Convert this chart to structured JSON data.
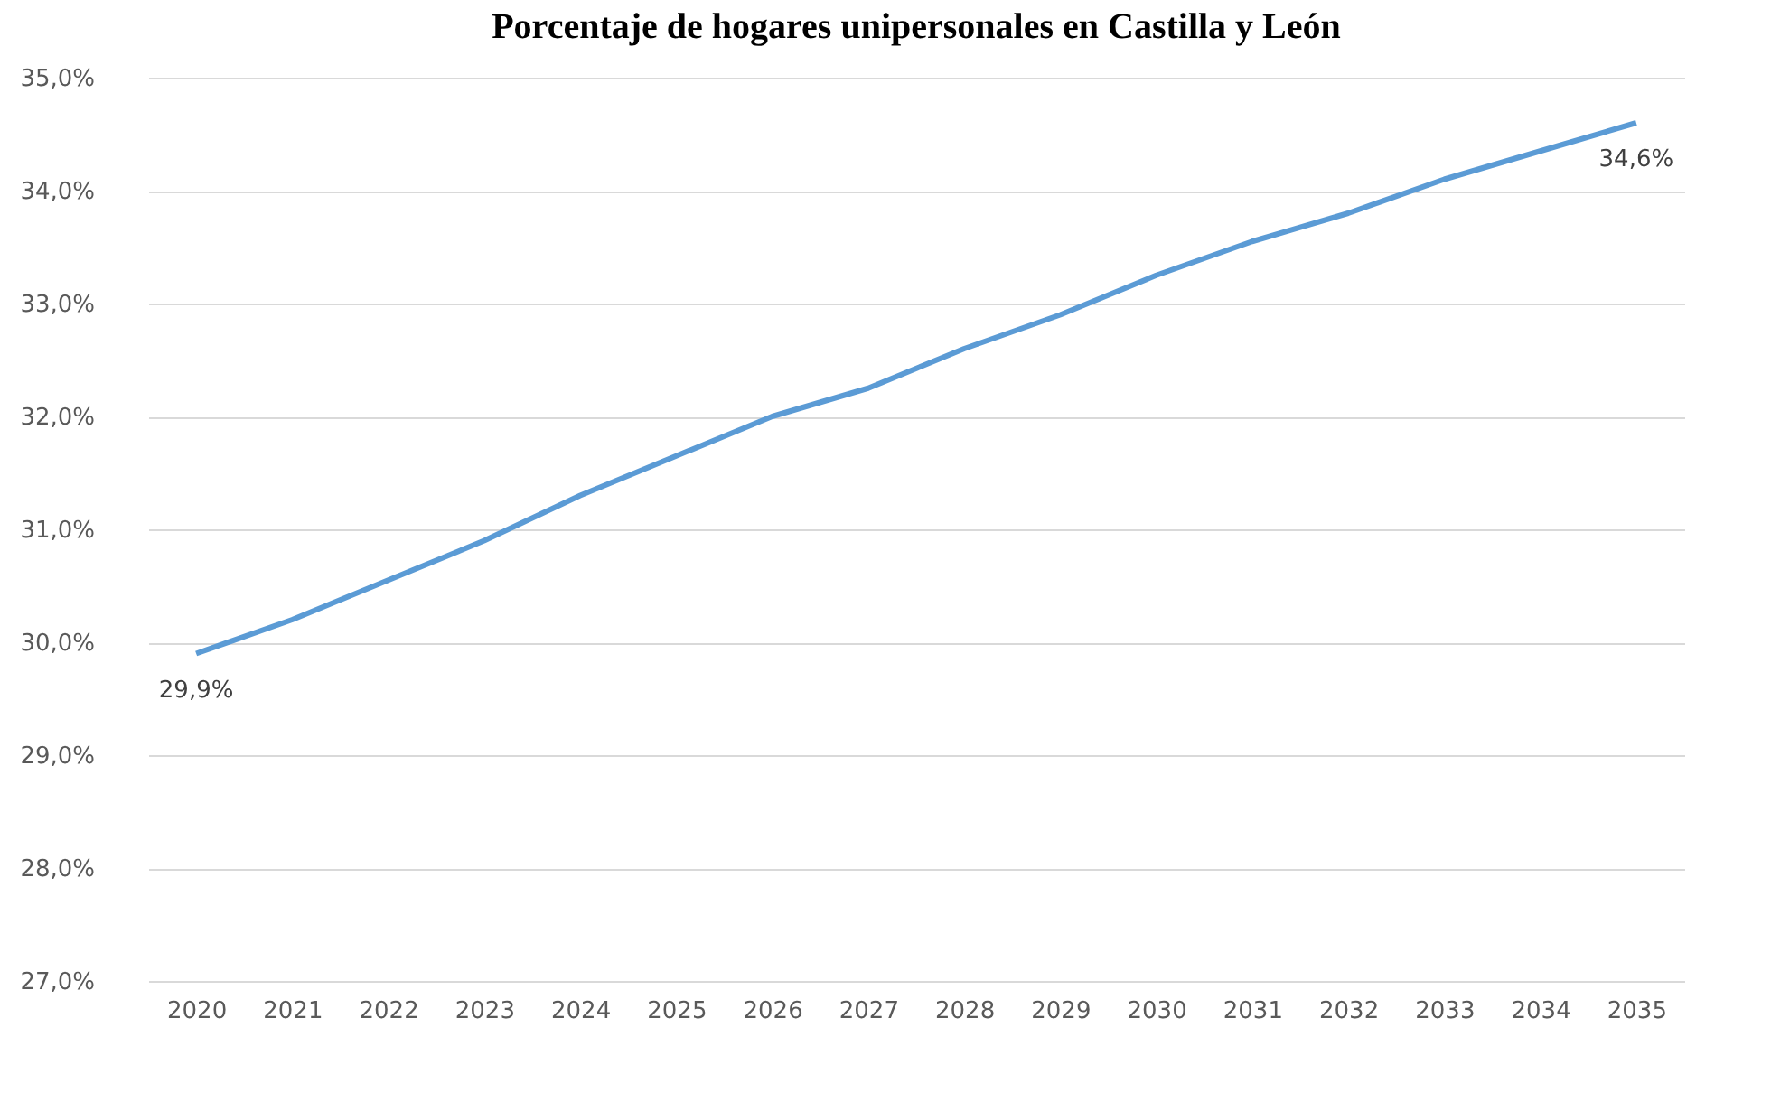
{
  "chart_data": {
    "type": "line",
    "title": "Porcentaje de hogares unipersonales en Castilla y León",
    "categories": [
      "2020",
      "2021",
      "2022",
      "2023",
      "2024",
      "2025",
      "2026",
      "2027",
      "2028",
      "2029",
      "2030",
      "2031",
      "2032",
      "2033",
      "2034",
      "2035"
    ],
    "series": [
      {
        "color": "#5b9bd5",
        "values": [
          29.9,
          30.2,
          30.55,
          30.9,
          31.3,
          31.65,
          32.0,
          32.25,
          32.6,
          32.9,
          33.25,
          33.55,
          33.8,
          34.1,
          34.35,
          34.6
        ],
        "value_labels": [
          "29,9%",
          null,
          null,
          null,
          null,
          null,
          null,
          null,
          null,
          null,
          null,
          null,
          null,
          null,
          null,
          "34,6%"
        ]
      }
    ],
    "ylim": [
      27,
      35
    ],
    "yticks": [
      {
        "value": 27,
        "label": "27,0%"
      },
      {
        "value": 28,
        "label": "28,0%"
      },
      {
        "value": 29,
        "label": "29,0%"
      },
      {
        "value": 30,
        "label": "30,0%"
      },
      {
        "value": 31,
        "label": "31,0%"
      },
      {
        "value": 32,
        "label": "32,0%"
      },
      {
        "value": 33,
        "label": "33,0%"
      },
      {
        "value": 34,
        "label": "34,0%"
      },
      {
        "value": 35,
        "label": "35,0%"
      }
    ],
    "grid": "y",
    "marker": "none",
    "line_style": "solid"
  }
}
